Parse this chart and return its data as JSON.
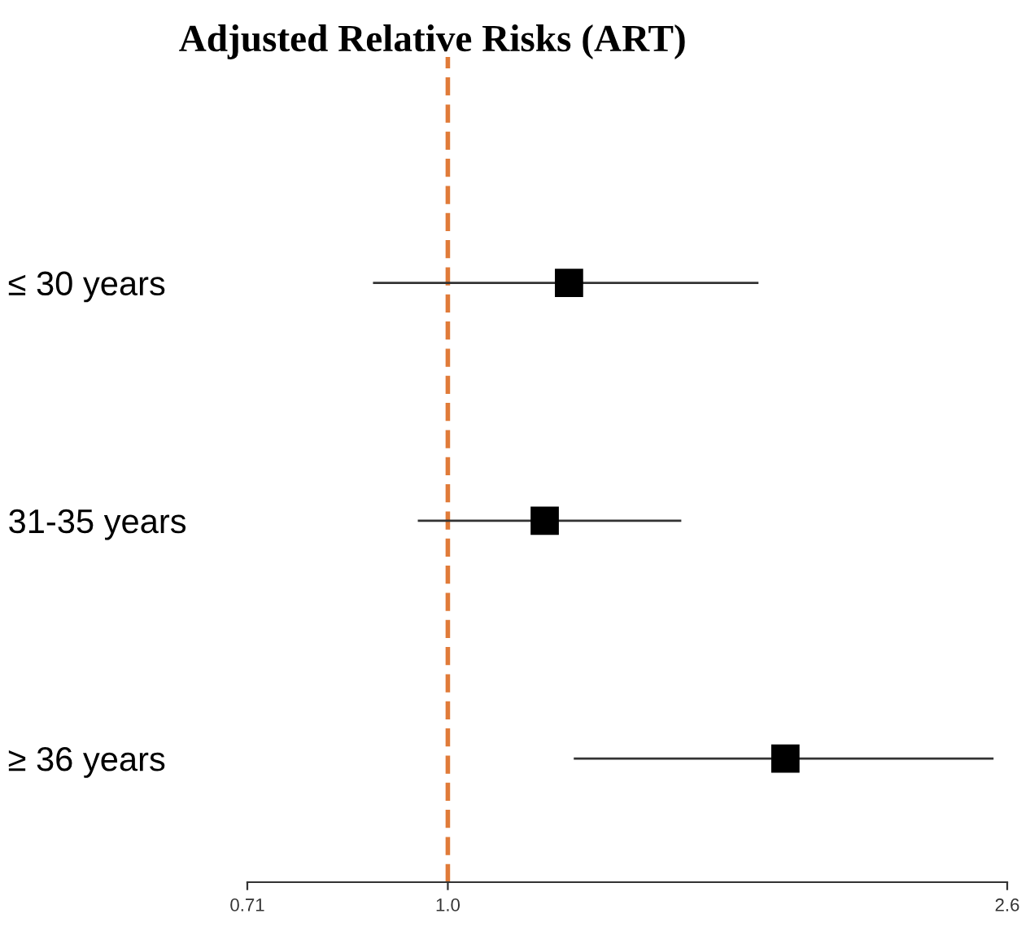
{
  "chart_data": {
    "type": "scatter",
    "orientation": "horizontal",
    "title": "Adjusted Relative Risks (ART)",
    "categories": [
      "≤ 30 years",
      "31-35 years",
      "≥ 36 years"
    ],
    "values": [
      1.23,
      1.18,
      1.78
    ],
    "errors": [
      [
        0.88,
        1.7
      ],
      [
        0.95,
        1.49
      ],
      [
        1.24,
        2.54
      ]
    ],
    "color": "#000000",
    "marker": "square",
    "log": "x",
    "xlim": [
      0.71,
      2.6
    ],
    "xticks": [
      0.71,
      {
        "value": 1.0,
        "label": "1.0"
      },
      2.6
    ],
    "ref_lines": [
      {
        "axis": "x",
        "value": 1.0,
        "color": "#e07b39",
        "line_style": "dashed"
      }
    ],
    "grid": false,
    "legend": false
  }
}
